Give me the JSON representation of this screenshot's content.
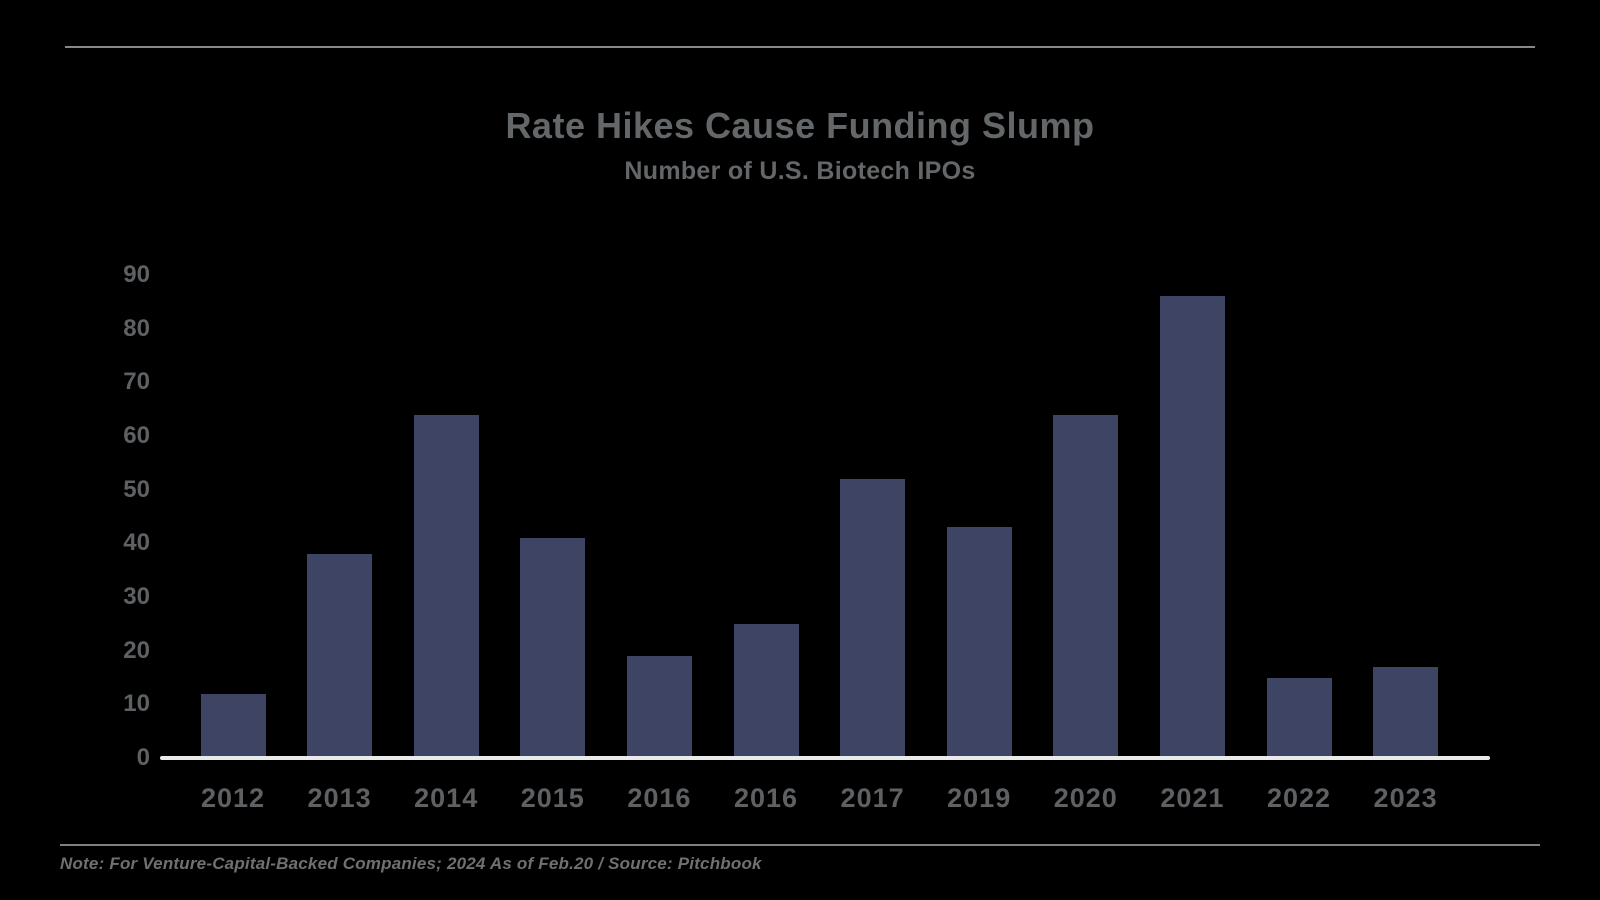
{
  "page": {
    "title": "Rate Hikes Cause Funding Slump",
    "subtitle": "Number of U.S. Biotech IPOs",
    "footer_note": "Note: For Venture-Capital-Backed Companies; 2024 As of Feb.20 / Source: Pitchbook"
  },
  "colors": {
    "background": "#000000",
    "bar": "#3d4464",
    "title_text": "#646769",
    "tick_text": "#5e6164",
    "axis_line": "#e9eaea",
    "rule_line": "#84888b",
    "footer_text": "#6e7174"
  },
  "chart_data": {
    "type": "bar",
    "title": "Rate Hikes Cause Funding Slump",
    "subtitle": "Number of U.S. Biotech IPOs",
    "categories": [
      "2012",
      "2013",
      "2014",
      "2015",
      "2016",
      "2016",
      "2017",
      "2019",
      "2020",
      "2021",
      "2022",
      "2023"
    ],
    "values": [
      12,
      38,
      64,
      41,
      19,
      25,
      52,
      43,
      64,
      86,
      15,
      17
    ],
    "xlabel": "",
    "ylabel": "",
    "ylim": [
      0,
      90
    ],
    "yticks": [
      0,
      10,
      20,
      30,
      40,
      50,
      60,
      70,
      80,
      90
    ],
    "grid": false,
    "legend_position": "none",
    "note": "Note: For Venture-Capital-Backed Companies; 2024 As of Feb.20 / Source: Pitchbook"
  }
}
